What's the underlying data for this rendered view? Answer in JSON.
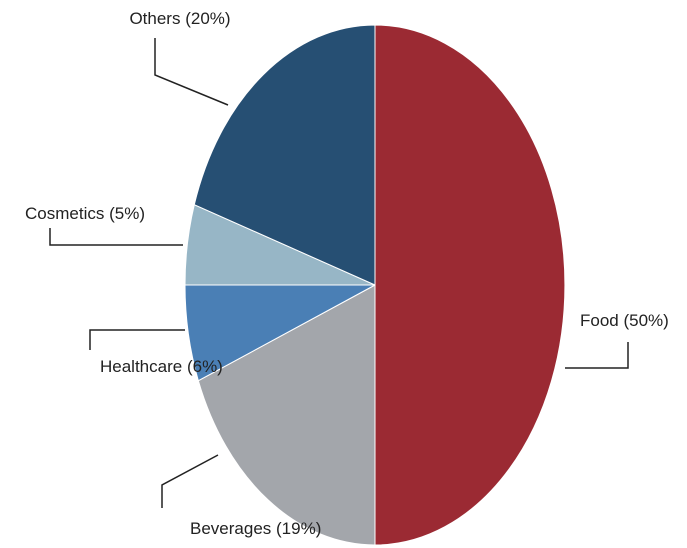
{
  "chart_data": {
    "type": "pie",
    "categories": [
      "Food",
      "Beverages",
      "Healthcare",
      "Cosmetics",
      "Others"
    ],
    "values": [
      50,
      19,
      6,
      5,
      20
    ],
    "value_labels": [
      "(50%)",
      "(19%)",
      "(6%)",
      "(5%)",
      "(20%)"
    ],
    "colors": [
      "#9b2a33",
      "#a3a6ab",
      "#4a7fb5",
      "#97b6c6",
      "#264f73"
    ]
  }
}
